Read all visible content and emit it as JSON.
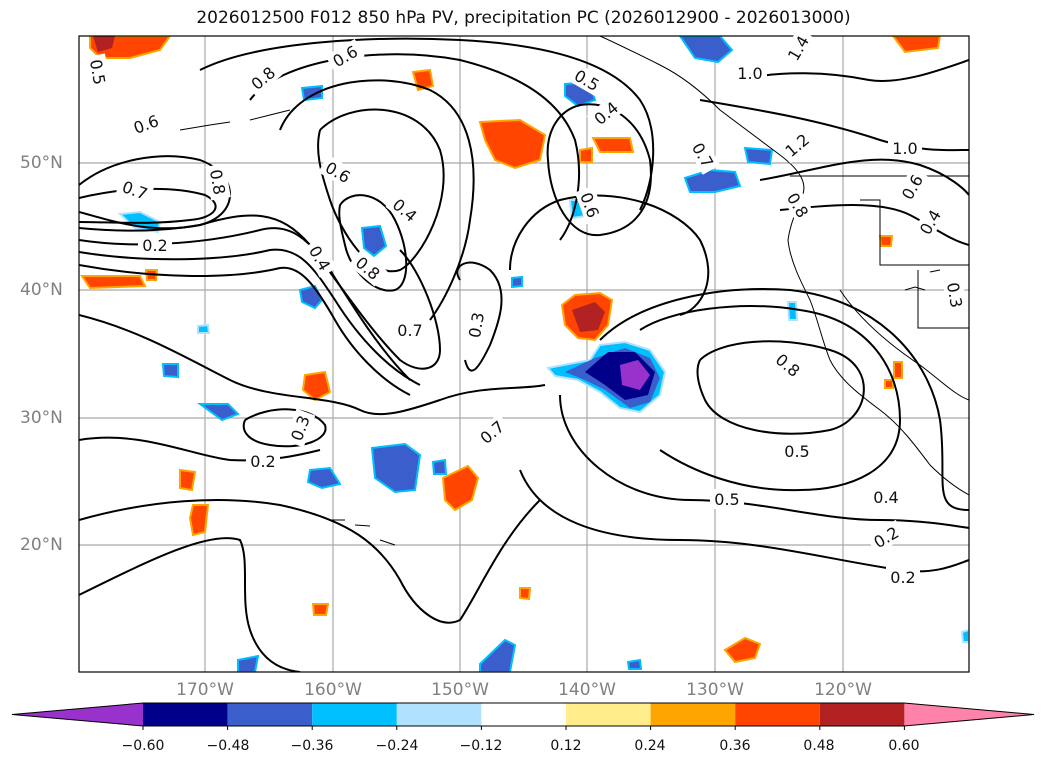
{
  "title": "2026012500 F012 850 hPa PV, precipitation PC (2026012900 - 2026013000)",
  "longitude_labels": [
    "170°W",
    "160°W",
    "150°W",
    "140°W",
    "130°W",
    "120°W"
  ],
  "latitude_labels": [
    "50°N",
    "40°N",
    "30°N",
    "20°N"
  ],
  "contour_labels": [
    "0.5",
    "0.8",
    "0.6",
    "1.4",
    "1.0",
    "0.5",
    "0.4",
    "1.2",
    "1.0",
    "0.6",
    "0.7",
    "0.7",
    "0.6",
    "0.4",
    "0.6",
    "0.8",
    "0.4",
    "0.6",
    "0.8",
    "0.2",
    "0.8",
    "0.3",
    "0.7",
    "0.3",
    "0.4",
    "0.3",
    "0.2",
    "0.7",
    "0.8",
    "0.5",
    "0.4",
    "0.5",
    "0.2",
    "0.2"
  ],
  "colorbar": {
    "tick_labels": [
      "−0.60",
      "−0.48",
      "−0.36",
      "−0.24",
      "−0.12",
      "0.12",
      "0.24",
      "0.36",
      "0.48",
      "0.60"
    ],
    "bins": [
      {
        "color": "#9932cc"
      },
      {
        "color": "#00008b"
      },
      {
        "color": "#3a5fcd"
      },
      {
        "color": "#00bfff"
      },
      {
        "color": "#b0e2ff"
      },
      {
        "color": "#ffffff"
      },
      {
        "color": "#ffec8b"
      },
      {
        "color": "#ffa500"
      },
      {
        "color": "#ff4500"
      },
      {
        "color": "#b22222"
      },
      {
        "color": "#ff82ab"
      }
    ]
  },
  "colors": {
    "contour": "#000000",
    "grid": "#a9a9a9",
    "coast": "#000000",
    "positive_strong": "#ff4500",
    "negative_strong": "#00008b"
  }
}
